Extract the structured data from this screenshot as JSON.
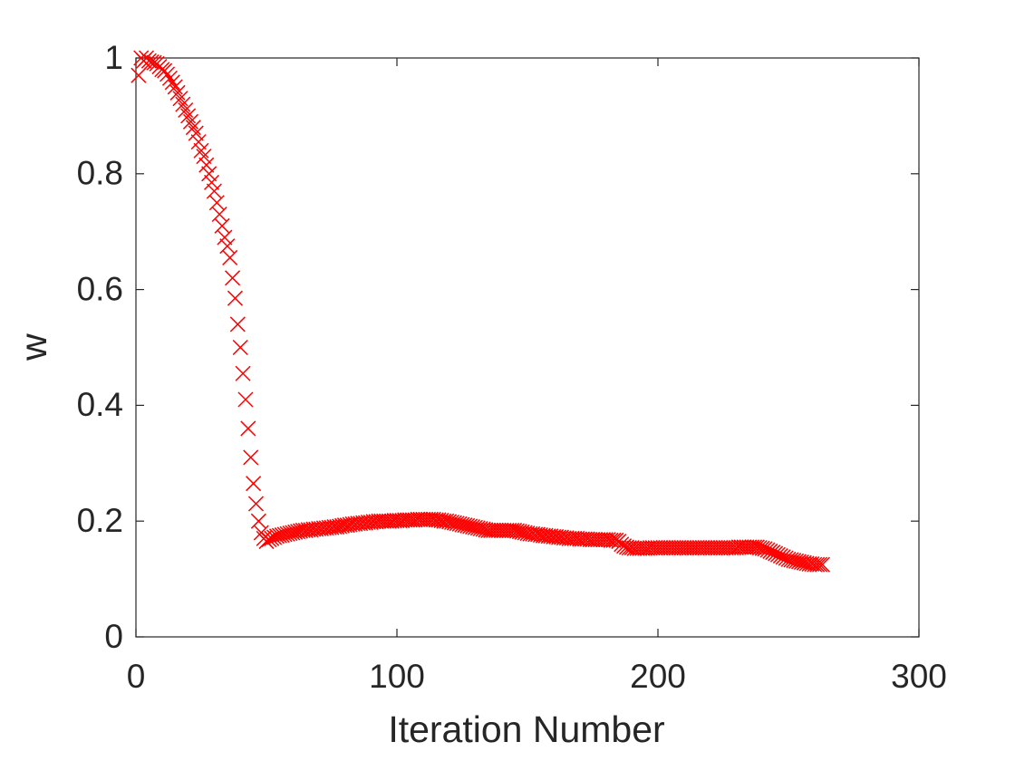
{
  "chart_data": {
    "type": "scatter",
    "xlabel": "Iteration Number",
    "ylabel": "w",
    "marker": "x",
    "color": "#ff0000",
    "xlim": [
      0,
      300
    ],
    "xticks": [
      0,
      100,
      200,
      300
    ],
    "ylim": [
      0,
      1
    ],
    "yticks": [
      0,
      0.2,
      0.4,
      0.6,
      0.8,
      1
    ],
    "grid": false,
    "box": true,
    "x": [
      1,
      2,
      3,
      4,
      5,
      6,
      7,
      8,
      9,
      10,
      11,
      12,
      13,
      14,
      15,
      16,
      17,
      18,
      19,
      20,
      21,
      22,
      23,
      24,
      25,
      26,
      27,
      28,
      29,
      30,
      31,
      32,
      33,
      34,
      35,
      36,
      37,
      38,
      39,
      40,
      41,
      42,
      43,
      44,
      45,
      46,
      47,
      48,
      49,
      50,
      51,
      52,
      53,
      54,
      55,
      56,
      57,
      58,
      59,
      60,
      61,
      62,
      63,
      64,
      65,
      66,
      67,
      68,
      69,
      70,
      71,
      72,
      73,
      74,
      75,
      76,
      77,
      78,
      79,
      80,
      81,
      82,
      83,
      84,
      85,
      86,
      87,
      88,
      89,
      90,
      91,
      92,
      93,
      94,
      95,
      96,
      97,
      98,
      99,
      100,
      101,
      102,
      103,
      104,
      105,
      106,
      107,
      108,
      109,
      110,
      111,
      112,
      113,
      114,
      115,
      116,
      117,
      118,
      119,
      120,
      121,
      122,
      123,
      124,
      125,
      126,
      127,
      128,
      129,
      130,
      131,
      132,
      133,
      134,
      135,
      136,
      137,
      138,
      139,
      140,
      141,
      142,
      143,
      144,
      145,
      146,
      147,
      148,
      149,
      150,
      151,
      152,
      153,
      154,
      155,
      156,
      157,
      158,
      159,
      160,
      161,
      162,
      163,
      164,
      165,
      166,
      167,
      168,
      169,
      170,
      171,
      172,
      173,
      174,
      175,
      176,
      177,
      178,
      179,
      180,
      181,
      182,
      183,
      184,
      185,
      186,
      187,
      188,
      189,
      190,
      191,
      192,
      193,
      194,
      195,
      196,
      197,
      198,
      199,
      200,
      201,
      202,
      203,
      204,
      205,
      206,
      207,
      208,
      209,
      210,
      211,
      212,
      213,
      214,
      215,
      216,
      217,
      218,
      219,
      220,
      221,
      222,
      223,
      224,
      225,
      226,
      227,
      228,
      229,
      230,
      231,
      232,
      233,
      234,
      235,
      236,
      237,
      238,
      239,
      240,
      241,
      242,
      243,
      244,
      245,
      246,
      247,
      248,
      249,
      250,
      251,
      252,
      253,
      254,
      255,
      256,
      257,
      258,
      259,
      260,
      261,
      262,
      263
    ],
    "values": [
      0.97,
      1.0,
      0.995,
      1.0,
      0.995,
      0.993,
      0.992,
      0.99,
      0.985,
      0.98,
      0.978,
      0.972,
      0.965,
      0.958,
      0.95,
      0.94,
      0.93,
      0.92,
      0.91,
      0.9,
      0.89,
      0.88,
      0.87,
      0.855,
      0.84,
      0.83,
      0.815,
      0.8,
      0.785,
      0.77,
      0.75,
      0.73,
      0.71,
      0.69,
      0.675,
      0.655,
      0.62,
      0.585,
      0.54,
      0.5,
      0.455,
      0.41,
      0.36,
      0.31,
      0.265,
      0.23,
      0.2,
      0.18,
      0.17,
      0.165,
      0.168,
      0.17,
      0.172,
      0.174,
      0.175,
      0.176,
      0.177,
      0.178,
      0.179,
      0.18,
      0.181,
      0.182,
      0.183,
      0.184,
      0.184,
      0.185,
      0.185,
      0.186,
      0.186,
      0.187,
      0.187,
      0.188,
      0.188,
      0.189,
      0.189,
      0.19,
      0.19,
      0.191,
      0.192,
      0.193,
      0.193,
      0.194,
      0.195,
      0.195,
      0.196,
      0.196,
      0.197,
      0.197,
      0.198,
      0.198,
      0.199,
      0.199,
      0.2,
      0.2,
      0.2,
      0.2,
      0.2,
      0.2,
      0.201,
      0.201,
      0.201,
      0.201,
      0.202,
      0.202,
      0.202,
      0.202,
      0.202,
      0.203,
      0.203,
      0.203,
      0.203,
      0.203,
      0.203,
      0.203,
      0.202,
      0.202,
      0.201,
      0.2,
      0.2,
      0.199,
      0.198,
      0.197,
      0.196,
      0.195,
      0.194,
      0.193,
      0.192,
      0.191,
      0.19,
      0.189,
      0.188,
      0.187,
      0.186,
      0.185,
      0.184,
      0.184,
      0.184,
      0.184,
      0.184,
      0.184,
      0.184,
      0.184,
      0.184,
      0.184,
      0.184,
      0.183,
      0.182,
      0.181,
      0.18,
      0.179,
      0.178,
      0.178,
      0.177,
      0.177,
      0.176,
      0.175,
      0.175,
      0.174,
      0.174,
      0.173,
      0.173,
      0.172,
      0.172,
      0.171,
      0.171,
      0.17,
      0.17,
      0.17,
      0.17,
      0.169,
      0.169,
      0.169,
      0.169,
      0.168,
      0.168,
      0.168,
      0.168,
      0.168,
      0.168,
      0.168,
      0.168,
      0.167,
      0.167,
      0.167,
      0.165,
      0.16,
      0.157,
      0.155,
      0.154,
      0.154,
      0.153,
      0.153,
      0.153,
      0.153,
      0.153,
      0.153,
      0.154,
      0.154,
      0.154,
      0.154,
      0.154,
      0.154,
      0.154,
      0.154,
      0.154,
      0.154,
      0.154,
      0.154,
      0.154,
      0.154,
      0.154,
      0.154,
      0.154,
      0.154,
      0.154,
      0.154,
      0.154,
      0.154,
      0.154,
      0.154,
      0.154,
      0.154,
      0.154,
      0.154,
      0.154,
      0.154,
      0.154,
      0.154,
      0.154,
      0.154,
      0.155,
      0.155,
      0.155,
      0.155,
      0.155,
      0.155,
      0.155,
      0.155,
      0.154,
      0.153,
      0.152,
      0.15,
      0.148,
      0.146,
      0.144,
      0.142,
      0.14,
      0.138,
      0.136,
      0.134,
      0.133,
      0.132,
      0.131,
      0.13,
      0.129,
      0.128,
      0.127,
      0.126,
      0.126,
      0.125,
      0.125,
      0.125,
      0.125
    ]
  }
}
